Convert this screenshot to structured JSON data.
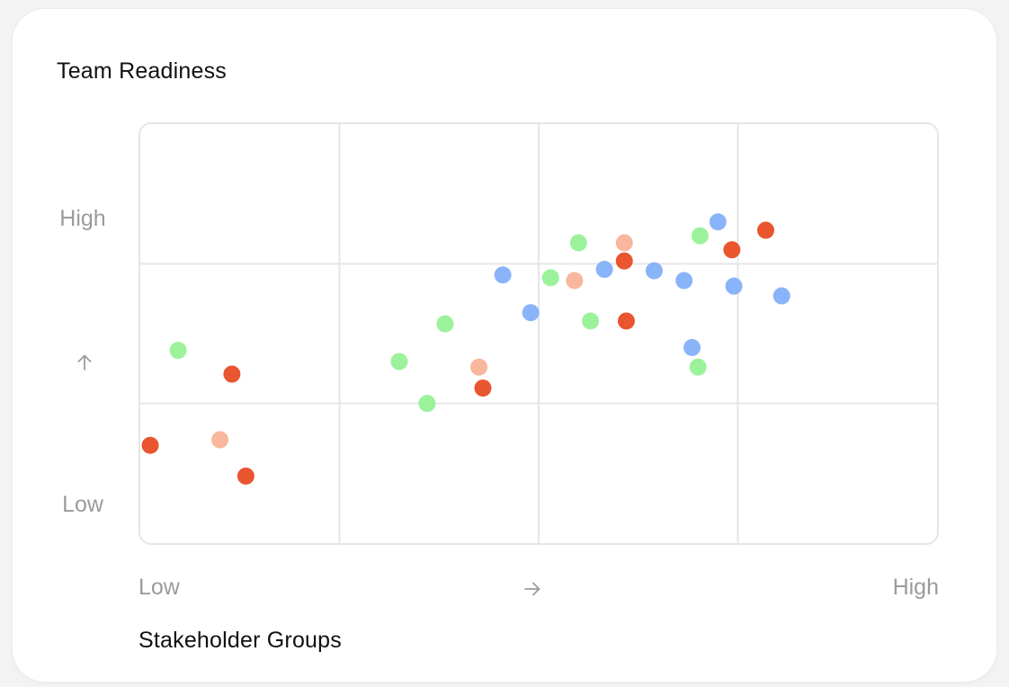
{
  "card": {
    "title": "Team Readiness",
    "x_title": "Stakeholder Groups"
  },
  "axes": {
    "y_high": "High",
    "y_low": "Low",
    "x_low": "Low",
    "x_high": "High",
    "y_arrow_icon": "arrow-up-icon",
    "x_arrow_icon": "arrow-right-icon"
  },
  "colors": {
    "blue": "#8ab4fa",
    "green": "#9cf29b",
    "red": "#e8552f",
    "salmon": "#f9b79d",
    "grid": "#e6e6e6",
    "axis_text": "#9b9b9b"
  },
  "chart_data": {
    "type": "scatter",
    "title": "Team Readiness",
    "xlabel": "Stakeholder Groups",
    "ylabel": "",
    "x_tick_labels": [
      "Low",
      "High"
    ],
    "y_tick_labels": [
      "Low",
      "High"
    ],
    "xlim": [
      0,
      4
    ],
    "ylim": [
      0,
      3
    ],
    "grid": true,
    "x_gridlines": [
      1,
      2,
      3
    ],
    "y_gridlines": [
      1,
      2
    ],
    "series": [
      {
        "color": "#8ab4fa",
        "points": [
          [
            1.82,
            1.92
          ],
          [
            1.96,
            1.65
          ],
          [
            2.33,
            1.96
          ],
          [
            2.58,
            1.95
          ],
          [
            2.73,
            1.88
          ],
          [
            2.77,
            1.4
          ],
          [
            2.9,
            2.3
          ],
          [
            2.98,
            1.84
          ],
          [
            3.22,
            1.77
          ]
        ]
      },
      {
        "color": "#9cf29b",
        "points": [
          [
            0.19,
            1.38
          ],
          [
            1.3,
            1.3
          ],
          [
            1.53,
            1.57
          ],
          [
            1.44,
            1.0
          ],
          [
            2.06,
            1.9
          ],
          [
            2.2,
            2.15
          ],
          [
            2.26,
            1.59
          ],
          [
            2.81,
            2.2
          ],
          [
            2.8,
            1.26
          ]
        ]
      },
      {
        "color": "#e8552f",
        "points": [
          [
            0.05,
            0.7
          ],
          [
            0.46,
            1.21
          ],
          [
            0.53,
            0.48
          ],
          [
            1.72,
            1.11
          ],
          [
            2.43,
            2.02
          ],
          [
            2.44,
            1.59
          ],
          [
            2.97,
            2.1
          ],
          [
            3.14,
            2.24
          ]
        ]
      },
      {
        "color": "#f9b79d",
        "points": [
          [
            0.4,
            0.74
          ],
          [
            1.7,
            1.26
          ],
          [
            2.18,
            1.88
          ],
          [
            2.43,
            2.15
          ]
        ]
      }
    ]
  }
}
